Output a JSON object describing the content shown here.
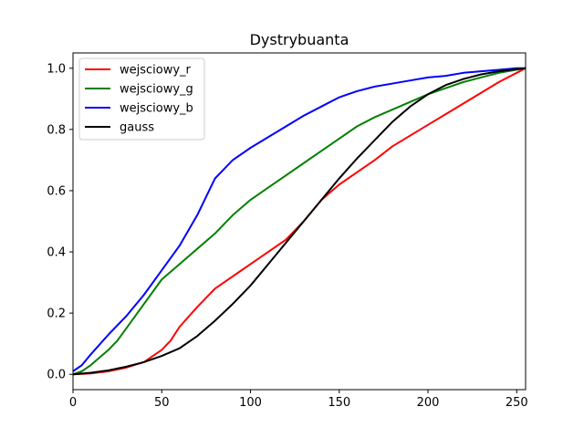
{
  "chart_data": {
    "type": "line",
    "title": "Dystrybuanta",
    "xlabel": "",
    "ylabel": "",
    "xlim": [
      0,
      255
    ],
    "ylim": [
      -0.05,
      1.05
    ],
    "xticks": [
      0,
      50,
      100,
      150,
      200,
      250
    ],
    "yticks": [
      0.0,
      0.2,
      0.4,
      0.6,
      0.8,
      1.0
    ],
    "xtick_labels": [
      "0",
      "50",
      "100",
      "150",
      "200",
      "250"
    ],
    "ytick_labels": [
      "0.0",
      "0.2",
      "0.4",
      "0.6",
      "0.8",
      "1.0"
    ],
    "grid": false,
    "legend_position": "top-left",
    "series": [
      {
        "name": "wejsciowy_r",
        "color": "#ff0000",
        "x": [
          0,
          10,
          20,
          30,
          40,
          50,
          55,
          60,
          70,
          80,
          90,
          100,
          110,
          120,
          130,
          140,
          150,
          160,
          170,
          180,
          190,
          200,
          210,
          220,
          230,
          240,
          250,
          255
        ],
        "y": [
          0.0,
          0.003,
          0.01,
          0.022,
          0.04,
          0.08,
          0.11,
          0.155,
          0.22,
          0.28,
          0.32,
          0.36,
          0.4,
          0.44,
          0.5,
          0.57,
          0.62,
          0.66,
          0.7,
          0.745,
          0.78,
          0.815,
          0.85,
          0.885,
          0.92,
          0.955,
          0.985,
          1.0
        ]
      },
      {
        "name": "wejsciowy_g",
        "color": "#008000",
        "x": [
          0,
          5,
          10,
          20,
          25,
          30,
          40,
          50,
          60,
          70,
          80,
          90,
          100,
          110,
          120,
          130,
          140,
          150,
          160,
          170,
          180,
          190,
          200,
          210,
          220,
          230,
          240,
          250,
          255
        ],
        "y": [
          0.0,
          0.01,
          0.03,
          0.08,
          0.11,
          0.15,
          0.23,
          0.31,
          0.36,
          0.41,
          0.46,
          0.52,
          0.57,
          0.61,
          0.65,
          0.69,
          0.73,
          0.77,
          0.81,
          0.84,
          0.865,
          0.89,
          0.915,
          0.935,
          0.955,
          0.97,
          0.985,
          0.995,
          1.0
        ]
      },
      {
        "name": "wejsciowy_b",
        "color": "#0000ff",
        "x": [
          0,
          5,
          10,
          20,
          30,
          40,
          50,
          60,
          70,
          75,
          80,
          90,
          100,
          110,
          120,
          130,
          140,
          150,
          160,
          170,
          180,
          190,
          200,
          210,
          220,
          230,
          240,
          250,
          255
        ],
        "y": [
          0.01,
          0.03,
          0.065,
          0.13,
          0.19,
          0.26,
          0.34,
          0.42,
          0.52,
          0.58,
          0.64,
          0.7,
          0.74,
          0.775,
          0.81,
          0.845,
          0.875,
          0.905,
          0.925,
          0.94,
          0.95,
          0.96,
          0.97,
          0.975,
          0.985,
          0.99,
          0.995,
          1.0,
          1.0
        ]
      },
      {
        "name": "gauss",
        "color": "#000000",
        "x": [
          0,
          10,
          20,
          30,
          40,
          50,
          60,
          70,
          80,
          90,
          100,
          110,
          120,
          130,
          140,
          150,
          160,
          170,
          180,
          190,
          200,
          210,
          220,
          230,
          240,
          250,
          255
        ],
        "y": [
          0.0,
          0.005,
          0.013,
          0.025,
          0.04,
          0.06,
          0.085,
          0.125,
          0.175,
          0.23,
          0.29,
          0.36,
          0.43,
          0.5,
          0.57,
          0.64,
          0.705,
          0.765,
          0.825,
          0.875,
          0.915,
          0.945,
          0.965,
          0.98,
          0.99,
          0.997,
          1.0
        ]
      }
    ]
  }
}
